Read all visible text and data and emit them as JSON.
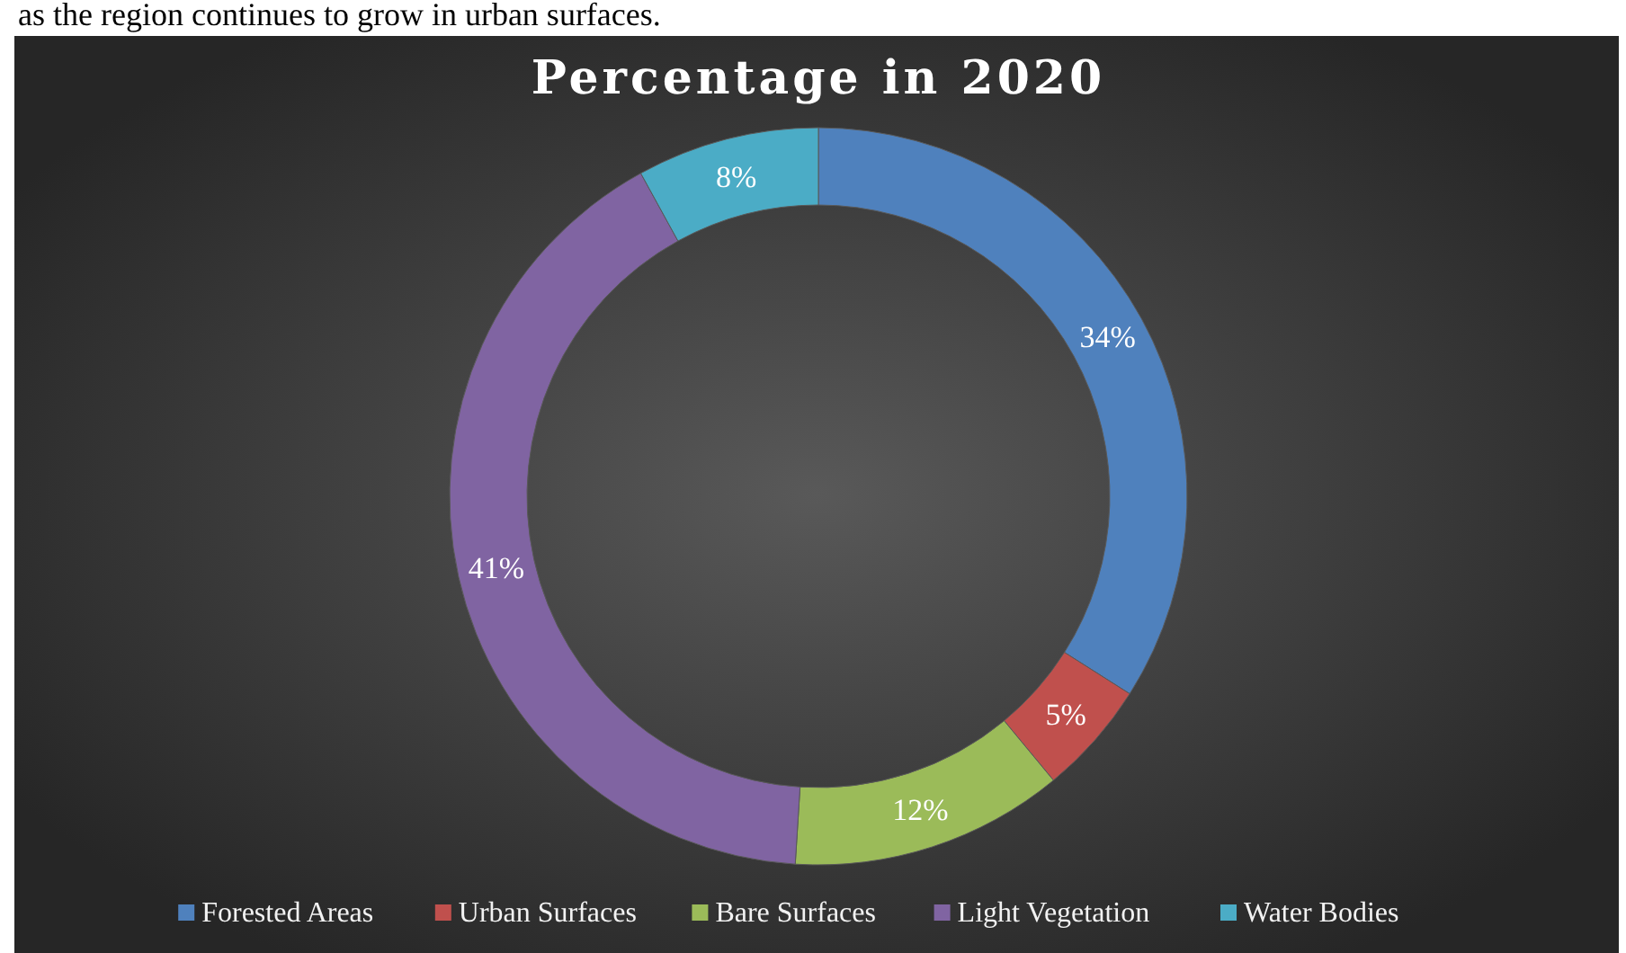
{
  "chart_data": {
    "type": "donut",
    "title": "Percentage in 2020",
    "annotations": [
      "as the region continues to grow in urban surfaces."
    ],
    "categories": [
      "Forested Areas",
      "Urban Surfaces",
      "Bare Surfaces",
      "Light Vegetation",
      "Water Bodies"
    ],
    "values": [
      34,
      5,
      12,
      41,
      8
    ],
    "value_labels": [
      "34%",
      "5%",
      "12%",
      "41%",
      "8%"
    ],
    "colors": [
      "#4f81bd",
      "#c0504d",
      "#9bbb59",
      "#8064a2",
      "#4bacc6"
    ],
    "legend": "bottom"
  }
}
